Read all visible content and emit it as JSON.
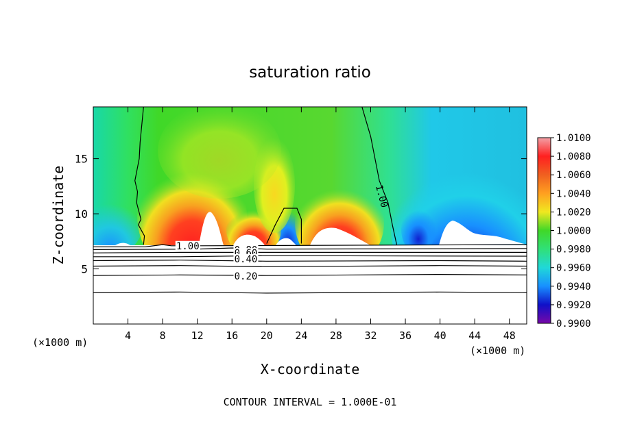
{
  "chart_data": {
    "type": "heatmap",
    "title": "saturation ratio",
    "xlabel": "X-coordinate",
    "ylabel": "Z-coordinate",
    "x_unit_left": "(×1000 m)",
    "x_unit_right": "(×1000 m)",
    "footer": "CONTOUR INTERVAL = 1.000E-01",
    "xlim": [
      0,
      50
    ],
    "ylim": [
      0,
      19.7
    ],
    "x_ticks": [
      4,
      8,
      12,
      16,
      20,
      24,
      28,
      32,
      36,
      40,
      44,
      48
    ],
    "x_tick_labels": [
      "4",
      "8",
      "12",
      "16",
      "20",
      "24",
      "28",
      "32",
      "36",
      "40",
      "44",
      "48"
    ],
    "y_ticks": [
      5,
      10,
      15
    ],
    "y_tick_labels": [
      "5",
      "10",
      "15"
    ],
    "colorbar": {
      "min": 0.99,
      "max": 1.01,
      "labels": [
        "1.0100",
        "1.0080",
        "1.0060",
        "1.0040",
        "1.0020",
        "1.0000",
        "0.9980",
        "0.9960",
        "0.9940",
        "0.9920",
        "0.9900"
      ],
      "colors": [
        "#f2a0a6",
        "#ff2020",
        "#f08020",
        "#ffc020",
        "#e6f020",
        "#40d828",
        "#30e078",
        "#20d8d8",
        "#1890ff",
        "#1010c8",
        "#7808a8"
      ]
    },
    "cloud_base_z": 7.2,
    "contours": [
      {
        "label": "1.00",
        "x": [
          5.8,
          5.4,
          5.3,
          4.8,
          5.1,
          5.0,
          5.5,
          5.2,
          5.9,
          5.8
        ],
        "z": [
          19.7,
          16.5,
          15.0,
          13.0,
          12.0,
          11.0,
          9.5,
          9.0,
          8.0,
          7.2
        ]
      },
      {
        "label": "1.00",
        "x": [
          31.0,
          32.0,
          32.5,
          33.0,
          34.0,
          34.5,
          35.0
        ],
        "z": [
          19.7,
          17.0,
          15.0,
          13.0,
          11.0,
          9.0,
          7.2
        ]
      },
      {
        "label": "",
        "x": [
          20.0,
          21.0,
          22.0,
          23.5,
          24.0,
          24.0
        ],
        "z": [
          7.3,
          9.0,
          10.5,
          10.5,
          9.5,
          7.3
        ]
      },
      {
        "label": "1.00",
        "x": [
          0,
          6,
          8,
          9,
          12,
          50
        ],
        "z": [
          7.0,
          7.0,
          7.2,
          7.1,
          7.1,
          7.2
        ]
      },
      {
        "label": "0.80",
        "x": [
          0,
          12,
          16,
          20,
          50
        ],
        "z": [
          6.75,
          6.8,
          6.9,
          6.8,
          6.85
        ]
      },
      {
        "label": "0.60",
        "x": [
          0,
          10,
          18,
          50
        ],
        "z": [
          6.45,
          6.5,
          6.5,
          6.5
        ]
      },
      {
        "label": "0.40",
        "x": [
          0,
          10,
          20,
          50
        ],
        "z": [
          6.1,
          6.1,
          6.2,
          6.15
        ]
      },
      {
        "label": "",
        "x": [
          0,
          10,
          20,
          40,
          50
        ],
        "z": [
          5.75,
          5.8,
          5.7,
          5.75,
          5.7
        ]
      },
      {
        "label": "",
        "x": [
          0,
          10,
          20,
          40,
          50
        ],
        "z": [
          5.25,
          5.3,
          5.2,
          5.3,
          5.25
        ]
      },
      {
        "label": "0.20",
        "x": [
          0,
          10,
          20,
          40,
          50
        ],
        "z": [
          4.4,
          4.45,
          4.4,
          4.5,
          4.45
        ]
      },
      {
        "label": "",
        "x": [
          0,
          10,
          20,
          40,
          50
        ],
        "z": [
          2.85,
          2.9,
          2.8,
          2.9,
          2.85
        ]
      }
    ],
    "contour_labels": [
      {
        "text": "1.00",
        "x": 10.9,
        "z": 7.1
      },
      {
        "text": "0.80",
        "x": 17.6,
        "z": 6.75
      },
      {
        "text": "0.60",
        "x": 17.6,
        "z": 6.45
      },
      {
        "text": "0.40",
        "x": 17.6,
        "z": 5.9
      },
      {
        "text": "0.20",
        "x": 17.6,
        "z": 4.35
      },
      {
        "text": "1.00",
        "x": 33.3,
        "z": 11.6
      }
    ]
  }
}
